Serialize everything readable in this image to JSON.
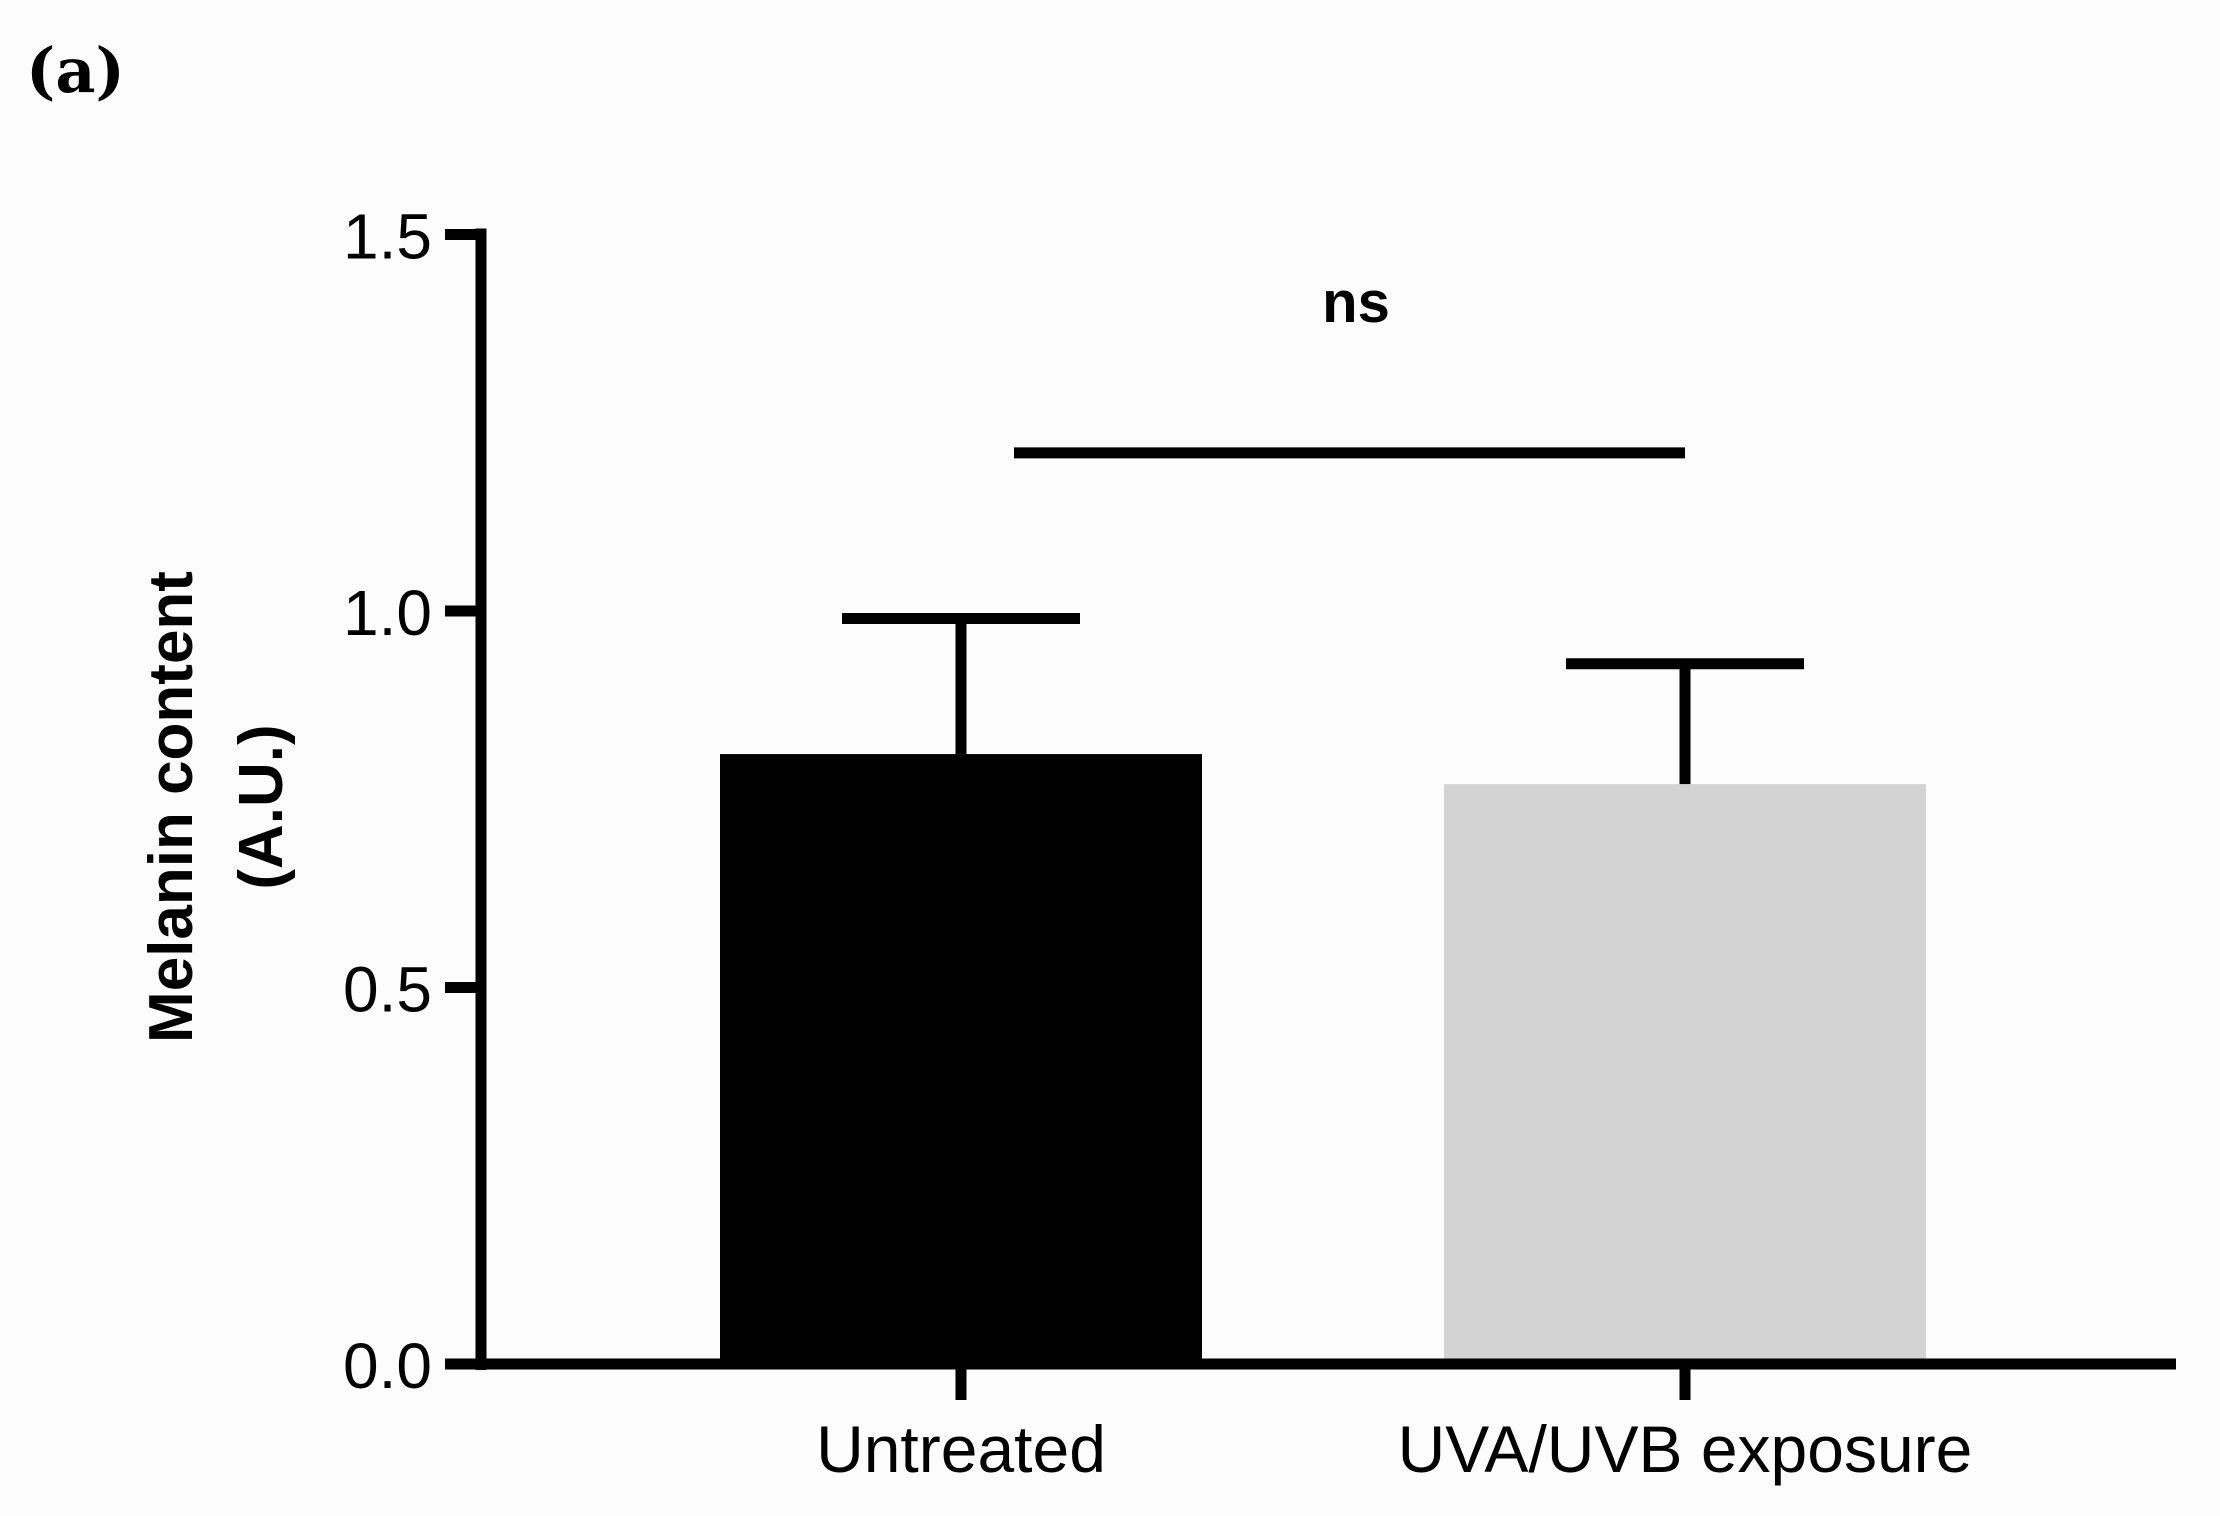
{
  "panel_label": "(a)",
  "chart_data": {
    "type": "bar",
    "title": "",
    "xlabel": "",
    "ylabel_lines": [
      "Melanin content",
      "(A.U.)"
    ],
    "ylim": [
      0,
      1.5
    ],
    "yticks": [
      0.0,
      0.5,
      1.0,
      1.5
    ],
    "ytick_labels": [
      "0.0",
      "0.5",
      "1.0",
      "1.5"
    ],
    "categories": [
      "Untreated",
      "UVA/UVB exposure"
    ],
    "values": [
      0.81,
      0.77
    ],
    "error_upper": [
      0.99,
      0.93
    ],
    "bar_colors": [
      "#000000",
      "#d3d3d3"
    ],
    "grid": false,
    "annotations": [
      {
        "text": "ns",
        "between": [
          "Untreated",
          "UVA/UVB exposure"
        ],
        "bracket_y": 1.21
      }
    ]
  }
}
